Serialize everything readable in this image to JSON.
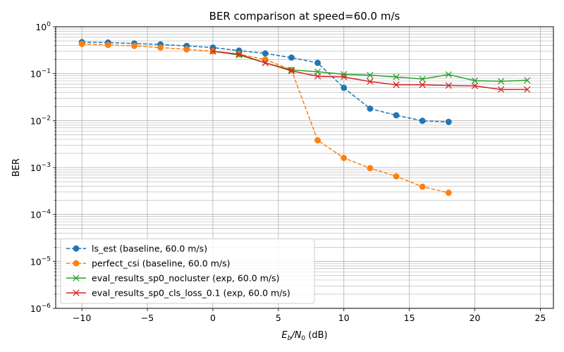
{
  "chart_data": {
    "type": "line",
    "title": "BER comparison at speed=60.0 m/s",
    "xlabel_parts": [
      "E",
      "b",
      "/N",
      "0",
      " (dB)"
    ],
    "ylabel": "BER",
    "xlim": [
      -12,
      26
    ],
    "ylim": [
      1e-06,
      1
    ],
    "yscale": "log",
    "grid": true,
    "grid_minor": true,
    "legend_position": "lower-left",
    "x_ticks": [
      -10,
      -5,
      0,
      5,
      10,
      15,
      20,
      25
    ],
    "x_tick_labels": [
      "−10",
      "−5",
      "0",
      "5",
      "10",
      "15",
      "20",
      "25"
    ],
    "y_ticks": [
      {
        "value": 1e-06,
        "mantissa": "10",
        "exp": "−6"
      },
      {
        "value": 1e-05,
        "mantissa": "10",
        "exp": "−5"
      },
      {
        "value": 0.0001,
        "mantissa": "10",
        "exp": "−4"
      },
      {
        "value": 0.001,
        "mantissa": "10",
        "exp": "−3"
      },
      {
        "value": 0.01,
        "mantissa": "10",
        "exp": "−2"
      },
      {
        "value": 0.1,
        "mantissa": "10",
        "exp": "−1"
      },
      {
        "value": 1,
        "mantissa": "10",
        "exp": "0"
      }
    ],
    "series": [
      {
        "name": "ls_est (baseline, 60.0 m/s)",
        "color": "#1f77b4",
        "linestyle": "dashed",
        "marker": "circle",
        "x": [
          -10,
          -8,
          -6,
          -4,
          -2,
          0,
          2,
          4,
          6,
          8,
          10,
          12,
          14,
          16,
          18
        ],
        "y": [
          0.47,
          0.46,
          0.44,
          0.42,
          0.39,
          0.36,
          0.31,
          0.27,
          0.22,
          0.17,
          0.05,
          0.018,
          0.013,
          0.0099,
          0.0094
        ]
      },
      {
        "name": "perfect_csi (baseline, 60.0 m/s)",
        "color": "#ff7f0e",
        "linestyle": "dashed",
        "marker": "circle",
        "x": [
          -10,
          -8,
          -6,
          -4,
          -2,
          0,
          2,
          4,
          6,
          8,
          10,
          12,
          14,
          16,
          18
        ],
        "y": [
          0.43,
          0.41,
          0.39,
          0.36,
          0.33,
          0.3,
          0.26,
          0.2,
          0.12,
          0.0038,
          0.0016,
          0.00097,
          0.00065,
          0.00039,
          0.00029
        ]
      },
      {
        "name": "eval_results_sp0_nocluster (exp, 60.0 m/s)",
        "color": "#2ca02c",
        "linestyle": "solid",
        "marker": "x",
        "x": [
          0,
          2,
          4,
          6,
          8,
          10,
          12,
          14,
          16,
          18,
          20,
          22,
          24
        ],
        "y": [
          0.3,
          0.25,
          0.17,
          0.12,
          0.11,
          0.097,
          0.093,
          0.085,
          0.077,
          0.096,
          0.071,
          0.069,
          0.072
        ]
      },
      {
        "name": "eval_results_sp0_cls_loss_0.1 (exp, 60.0 m/s)",
        "color": "#d62728",
        "linestyle": "solid",
        "marker": "x",
        "x": [
          0,
          2,
          4,
          6,
          8,
          10,
          12,
          14,
          16,
          18,
          20,
          22,
          24
        ],
        "y": [
          0.3,
          0.26,
          0.17,
          0.115,
          0.088,
          0.085,
          0.068,
          0.058,
          0.058,
          0.056,
          0.055,
          0.046,
          0.046
        ]
      }
    ]
  }
}
